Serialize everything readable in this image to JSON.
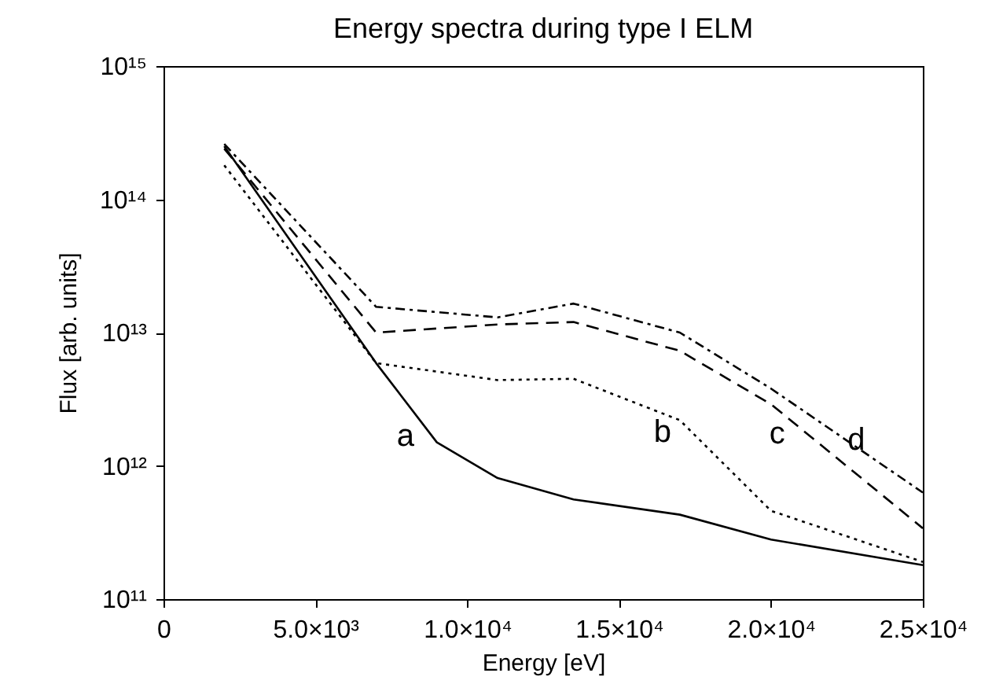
{
  "chart_data": {
    "type": "line",
    "title": "Energy spectra during type I ELM",
    "xlabel": "Energy    [eV]",
    "ylabel": "Flux   [arb. units]",
    "log": "y",
    "grid": false,
    "xlim": [
      0,
      25000
    ],
    "ylim": [
      100000000000.0,
      1000000000000000.0
    ],
    "xticks": [
      0,
      {
        "value": 5000,
        "label": "5.0×10³"
      },
      {
        "value": 10000,
        "label": "1.0×10⁴"
      },
      {
        "value": 15000,
        "label": "1.5×10⁴"
      },
      {
        "value": 20000,
        "label": "2.0×10⁴"
      },
      {
        "value": 25000,
        "label": "2.5×10⁴"
      }
    ],
    "yticks": [
      {
        "value": 100000000000.0,
        "label": "10¹¹"
      },
      {
        "value": 1000000000000.0,
        "label": "10¹²"
      },
      {
        "value": 10000000000000.0,
        "label": "10¹³"
      },
      {
        "value": 100000000000000.0,
        "label": "10¹⁴"
      },
      {
        "value": 1000000000000000.0,
        "label": "10¹⁵"
      }
    ],
    "series": [
      {
        "name": "a",
        "color": "#000000",
        "line_style": "solid",
        "x": [
          2000,
          7000,
          9000,
          11000,
          13500,
          17000,
          20000,
          25000
        ],
        "values": [
          250000000000000.0,
          5900000000000.0,
          1500000000000.0,
          810000000000.0,
          560000000000.0,
          430000000000.0,
          280000000000.0,
          180000000000.0
        ]
      },
      {
        "name": "b",
        "color": "#000000",
        "line_style": "dotted",
        "x": [
          2000,
          7000,
          11000,
          13500,
          17000,
          20000,
          25000
        ],
        "values": [
          180000000000000.0,
          5900000000000.0,
          4400000000000.0,
          4500000000000.0,
          2200000000000.0,
          460000000000.0,
          190000000000.0
        ]
      },
      {
        "name": "c",
        "color": "#000000",
        "line_style": "dashed",
        "x": [
          2000,
          7000,
          11000,
          13500,
          17000,
          20000,
          25000
        ],
        "values": [
          240000000000000.0,
          10000000000000.0,
          11500000000000.0,
          12000000000000.0,
          7300000000000.0,
          2900000000000.0,
          340000000000.0
        ]
      },
      {
        "name": "d",
        "color": "#000000",
        "line_style": "dashdot",
        "x": [
          2000,
          7000,
          11000,
          13500,
          17000,
          20000,
          25000
        ],
        "values": [
          260000000000000.0,
          15600000000000.0,
          13000000000000.0,
          16500000000000.0,
          10000000000000.0,
          3800000000000.0,
          630000000000.0
        ]
      }
    ]
  }
}
